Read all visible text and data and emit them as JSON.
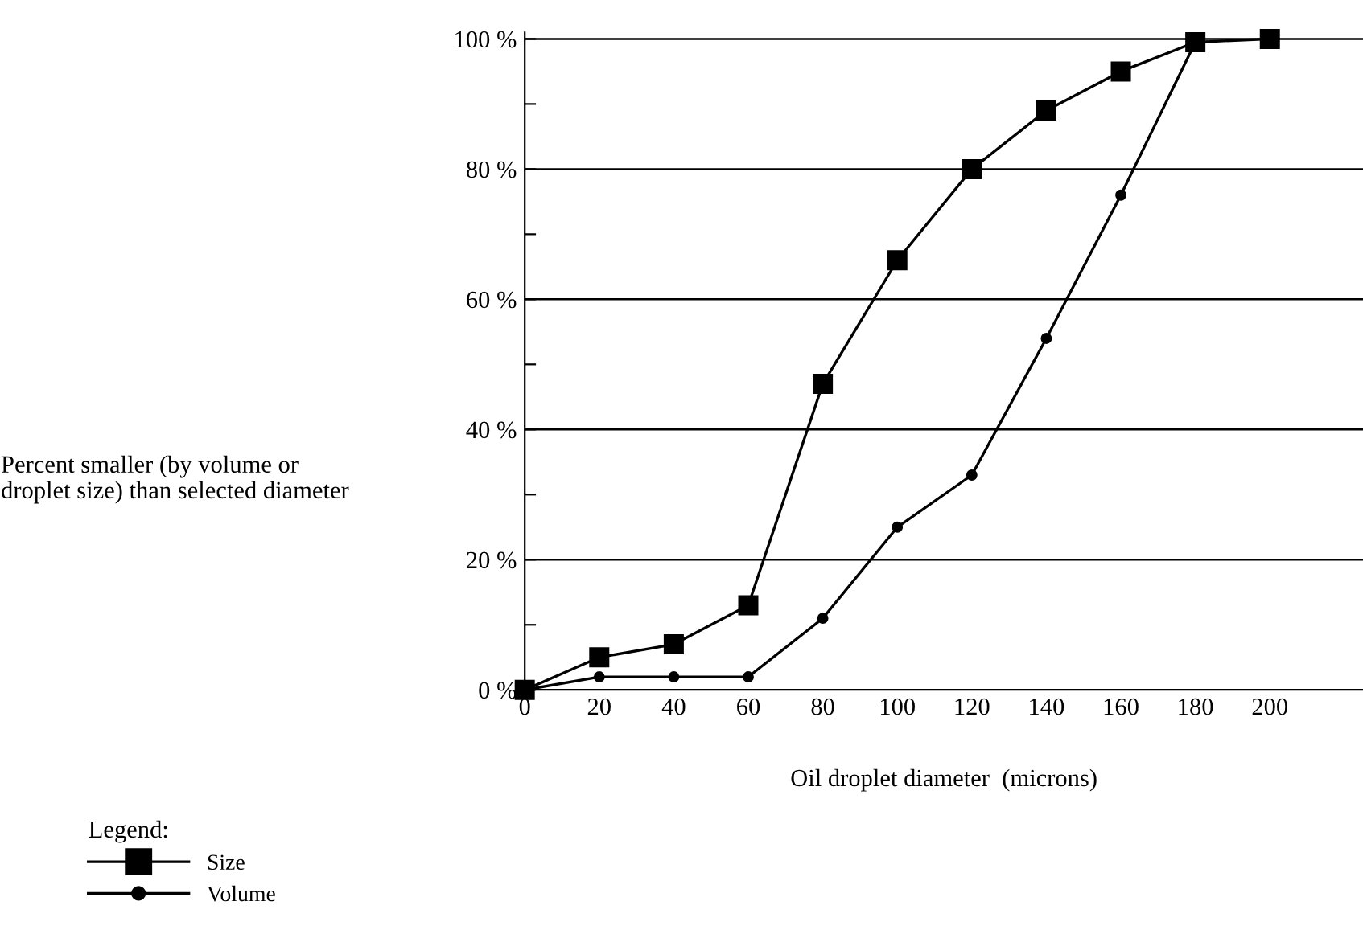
{
  "chart_data": {
    "type": "line",
    "xlabel": "Oil droplet diameter  (microns)",
    "ylabel": "Percent smaller (by volume or\ndroplet size) than selected diameter",
    "legend_title": "Legend:",
    "x": [
      0,
      20,
      40,
      60,
      80,
      100,
      120,
      140,
      160,
      180,
      200
    ],
    "series": [
      {
        "name": "Size",
        "color": "#000000",
        "marker": "square",
        "values": [
          0,
          5,
          7,
          13,
          47,
          66,
          80,
          89,
          95,
          99.5,
          100
        ]
      },
      {
        "name": "Volume",
        "color": "#000000",
        "marker": "circle",
        "x": [
          0,
          20,
          40,
          60,
          80,
          100,
          120,
          140,
          160,
          180
        ],
        "values": [
          0,
          2,
          2,
          2,
          11,
          25,
          33,
          54,
          76,
          99.5
        ]
      }
    ],
    "xlim": [
      0,
      225
    ],
    "ylim": [
      0,
      101
    ],
    "xticks": [
      0,
      20,
      40,
      60,
      80,
      100,
      120,
      140,
      160,
      180,
      200
    ],
    "yticks": [
      {
        "value": 0,
        "label": "0 %"
      },
      {
        "value": 10,
        "label": null
      },
      {
        "value": 20,
        "label": "20 %"
      },
      {
        "value": 30,
        "label": null
      },
      {
        "value": 40,
        "label": "40 %"
      },
      {
        "value": 50,
        "label": null
      },
      {
        "value": 60,
        "label": "60 %"
      },
      {
        "value": 70,
        "label": null
      },
      {
        "value": 80,
        "label": "80 %"
      },
      {
        "value": 90,
        "label": null
      },
      {
        "value": 100,
        "label": "100 %"
      }
    ],
    "grid": "y",
    "legend": "bottom left",
    "line_style": "solid"
  }
}
